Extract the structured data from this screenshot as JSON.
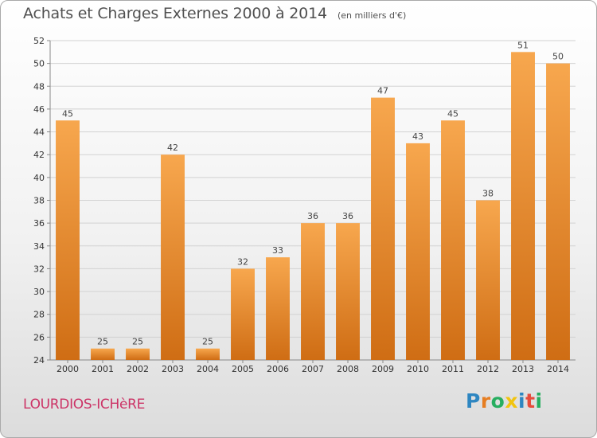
{
  "chart_data": {
    "type": "bar",
    "title": "Achats et Charges Externes 2000 à 2014",
    "subtitle": "(en milliers d'€)",
    "xlabel": "",
    "ylabel": "",
    "categories": [
      "2000",
      "2001",
      "2002",
      "2003",
      "2004",
      "2005",
      "2006",
      "2007",
      "2008",
      "2009",
      "2010",
      "2011",
      "2012",
      "2013",
      "2014"
    ],
    "values": [
      45,
      25,
      25,
      42,
      25,
      32,
      33,
      36,
      36,
      47,
      43,
      45,
      38,
      51,
      50
    ],
    "ylim": [
      24,
      52
    ],
    "yticks": [
      24,
      26,
      28,
      30,
      32,
      34,
      36,
      38,
      40,
      42,
      44,
      46,
      48,
      50,
      52
    ],
    "grid": true,
    "bar_color": "#f0922e"
  },
  "footer": {
    "commune": "LOURDIOS-ICHèRE",
    "logo_letters": [
      "P",
      "r",
      "o",
      "x",
      "i",
      "t",
      "i"
    ]
  }
}
